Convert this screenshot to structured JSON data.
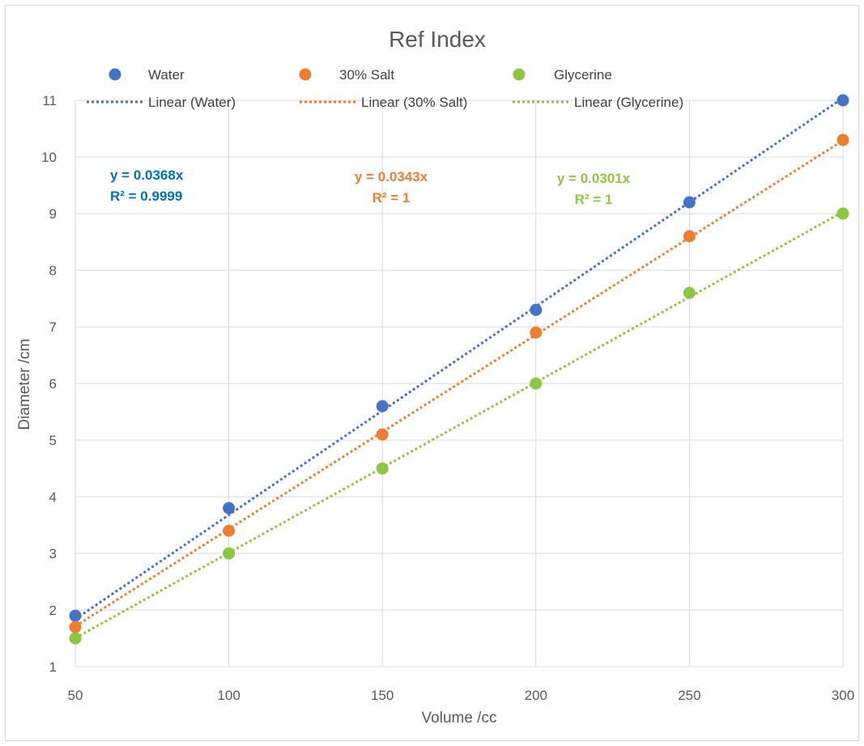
{
  "chart_data": {
    "type": "scatter",
    "title": "Ref Index",
    "xlabel": "Volume /cc",
    "ylabel": "Diameter /cm",
    "xlim": [
      50,
      300
    ],
    "ylim": [
      1,
      11
    ],
    "xticks": [
      50,
      100,
      150,
      200,
      250,
      300
    ],
    "yticks": [
      1,
      2,
      3,
      4,
      5,
      6,
      7,
      8,
      9,
      10,
      11
    ],
    "grid": true,
    "legend_position": "top",
    "x": [
      50,
      100,
      150,
      200,
      250,
      300
    ],
    "series": [
      {
        "name": "Water",
        "color": "#4472C4",
        "values": [
          1.9,
          3.8,
          5.6,
          7.3,
          9.2,
          11
        ],
        "trendline": {
          "name": "Linear (Water)",
          "slope": 0.0368,
          "equation": "y = 0.0368x",
          "r2": "R² = 0.9999",
          "label_color": "#0070C0",
          "label_align": "left"
        }
      },
      {
        "name": "30% Salt",
        "color": "#ED7D31",
        "values": [
          1.7,
          3.4,
          5.1,
          6.9,
          8.6,
          10.3
        ],
        "trendline": {
          "name": "Linear (30% Salt)",
          "slope": 0.0343,
          "equation": "y = 0.0343x",
          "r2": "R² = 1",
          "label_color": "#ED7D31",
          "label_align": "center"
        }
      },
      {
        "name": "Glycerine",
        "color": "#8DC63F",
        "values": [
          1.5,
          3.0,
          4.5,
          6.0,
          7.6,
          9.0
        ],
        "trendline": {
          "name": "Linear (Glycerine)",
          "slope": 0.0301,
          "equation": "y = 0.0301x",
          "r2": "R² = 1",
          "label_color": "#8DC63F",
          "label_align": "center"
        }
      }
    ]
  }
}
